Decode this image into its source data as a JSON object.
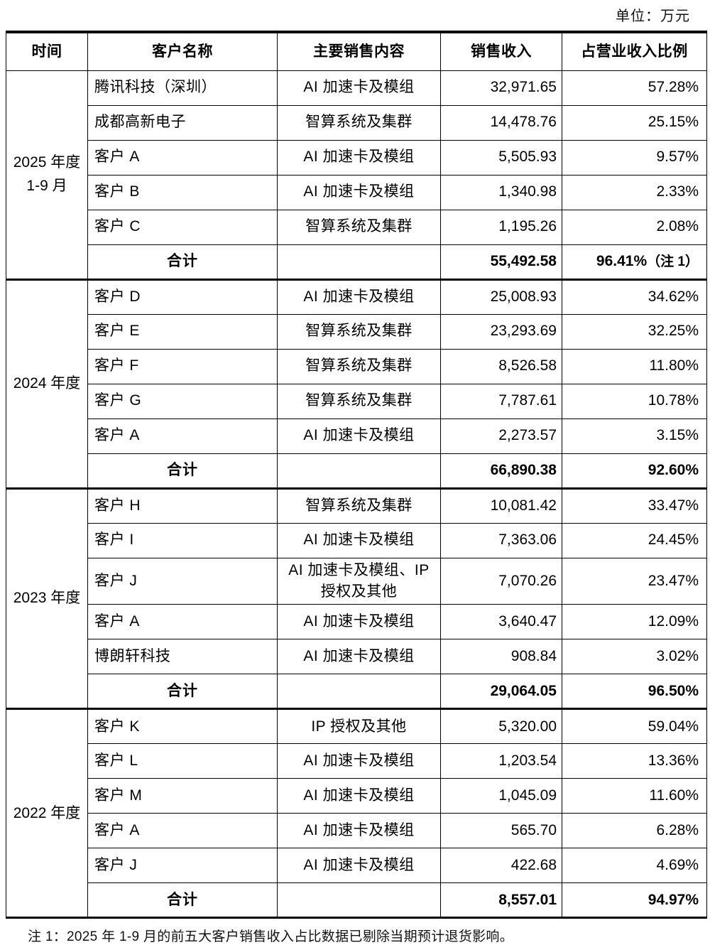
{
  "unit_label": "单位：万元",
  "table": {
    "headers": [
      "时间",
      "客户名称",
      "主要销售内容",
      "销售收入",
      "占营业收入比例"
    ],
    "total_label": "合计",
    "sections": [
      {
        "period_lines": [
          "2025 年度",
          "1-9 月"
        ],
        "rows": [
          {
            "customer": "腾讯科技（深圳）",
            "content": "AI 加速卡及模组",
            "revenue": "32,971.65",
            "ratio": "57.28%"
          },
          {
            "customer": "成都高新电子",
            "content": "智算系统及集群",
            "revenue": "14,478.76",
            "ratio": "25.15%"
          },
          {
            "customer": "客户 A",
            "content": "AI 加速卡及模组",
            "revenue": "5,505.93",
            "ratio": "9.57%"
          },
          {
            "customer": "客户 B",
            "content": "AI 加速卡及模组",
            "revenue": "1,340.98",
            "ratio": "2.33%"
          },
          {
            "customer": "客户 C",
            "content": "智算系统及集群",
            "revenue": "1,195.26",
            "ratio": "2.08%"
          }
        ],
        "total": {
          "revenue": "55,492.58",
          "ratio": "96.41%",
          "ratio_note": "（注 1）"
        }
      },
      {
        "period_lines": [
          "2024 年度"
        ],
        "rows": [
          {
            "customer": "客户 D",
            "content": "AI 加速卡及模组",
            "revenue": "25,008.93",
            "ratio": "34.62%"
          },
          {
            "customer": "客户 E",
            "content": "智算系统及集群",
            "revenue": "23,293.69",
            "ratio": "32.25%"
          },
          {
            "customer": "客户 F",
            "content": "智算系统及集群",
            "revenue": "8,526.58",
            "ratio": "11.80%"
          },
          {
            "customer": "客户 G",
            "content": "智算系统及集群",
            "revenue": "7,787.61",
            "ratio": "10.78%"
          },
          {
            "customer": "客户 A",
            "content": "AI 加速卡及模组",
            "revenue": "2,273.57",
            "ratio": "3.15%"
          }
        ],
        "total": {
          "revenue": "66,890.38",
          "ratio": "92.60%",
          "ratio_note": ""
        }
      },
      {
        "period_lines": [
          "2023 年度"
        ],
        "rows": [
          {
            "customer": "客户 H",
            "content": "智算系统及集群",
            "revenue": "10,081.42",
            "ratio": "33.47%"
          },
          {
            "customer": "客户 I",
            "content": "AI 加速卡及模组",
            "revenue": "7,363.06",
            "ratio": "24.45%"
          },
          {
            "customer": "客户 J",
            "content": "AI 加速卡及模组、IP 授权及其他",
            "revenue": "7,070.26",
            "ratio": "23.47%"
          },
          {
            "customer": "客户 A",
            "content": "AI 加速卡及模组",
            "revenue": "3,640.47",
            "ratio": "12.09%"
          },
          {
            "customer": "博朗轩科技",
            "content": "AI 加速卡及模组",
            "revenue": "908.84",
            "ratio": "3.02%"
          }
        ],
        "total": {
          "revenue": "29,064.05",
          "ratio": "96.50%",
          "ratio_note": ""
        }
      },
      {
        "period_lines": [
          "2022 年度"
        ],
        "rows": [
          {
            "customer": "客户 K",
            "content": "IP 授权及其他",
            "revenue": "5,320.00",
            "ratio": "59.04%"
          },
          {
            "customer": "客户 L",
            "content": "AI 加速卡及模组",
            "revenue": "1,203.54",
            "ratio": "13.36%"
          },
          {
            "customer": "客户 M",
            "content": "AI 加速卡及模组",
            "revenue": "1,045.09",
            "ratio": "11.60%"
          },
          {
            "customer": "客户 A",
            "content": "AI 加速卡及模组",
            "revenue": "565.70",
            "ratio": "6.28%"
          },
          {
            "customer": "客户 J",
            "content": "AI 加速卡及模组",
            "revenue": "422.68",
            "ratio": "4.69%"
          }
        ],
        "total": {
          "revenue": "8,557.01",
          "ratio": "94.97%",
          "ratio_note": ""
        }
      }
    ]
  },
  "footnote": "注 1：2025 年 1-9 月的前五大客户销售收入占比数据已剔除当期预计退货影响。"
}
